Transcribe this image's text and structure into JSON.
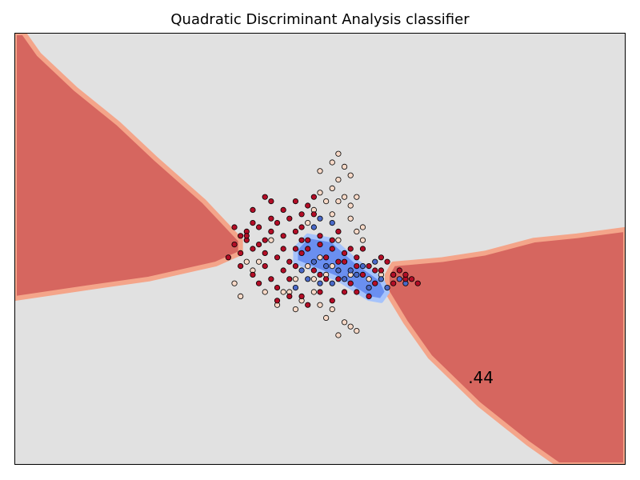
{
  "chart_data": {
    "type": "scatter",
    "title": "Quadratic Discriminant Analysis classifier",
    "xlabel": "",
    "ylabel": "",
    "ticks_visible": false,
    "grid": false,
    "legend": "none",
    "annotation": ".44",
    "xlim": [
      0,
      1
    ],
    "ylim": [
      0,
      1
    ],
    "background_color": "#e1e1e1",
    "decision_regions": [
      {
        "name": "upper-left",
        "color": "#d6665f",
        "outline_color": "#f4a58a",
        "polygon": [
          [
            0,
            1.0
          ],
          [
            0.015,
            1.0
          ],
          [
            0.04,
            0.95
          ],
          [
            0.1,
            0.87
          ],
          [
            0.17,
            0.79
          ],
          [
            0.23,
            0.71
          ],
          [
            0.31,
            0.61
          ],
          [
            0.37,
            0.52
          ],
          [
            0.37,
            0.49
          ],
          [
            0.33,
            0.465
          ],
          [
            0.22,
            0.43
          ],
          [
            0.12,
            0.41
          ],
          [
            0.0,
            0.385
          ]
        ]
      },
      {
        "name": "lower-right",
        "color": "#d6665f",
        "outline_color": "#f4a58a",
        "polygon": [
          [
            0.62,
            0.465
          ],
          [
            0.7,
            0.475
          ],
          [
            0.77,
            0.49
          ],
          [
            0.85,
            0.52
          ],
          [
            0.92,
            0.53
          ],
          [
            1.0,
            0.545
          ],
          [
            1.0,
            0.0
          ],
          [
            0.89,
            0.0
          ],
          [
            0.84,
            0.05
          ],
          [
            0.76,
            0.14
          ],
          [
            0.68,
            0.25
          ],
          [
            0.64,
            0.33
          ],
          [
            0.61,
            0.4
          ],
          [
            0.61,
            0.44
          ]
        ]
      },
      {
        "name": "center-blue",
        "color": "#6a8ff0",
        "outline_color": "#a6c3fb",
        "polygon": [
          [
            0.46,
            0.47
          ],
          [
            0.53,
            0.43
          ],
          [
            0.58,
            0.385
          ],
          [
            0.6,
            0.38
          ],
          [
            0.61,
            0.4
          ],
          [
            0.6,
            0.43
          ],
          [
            0.56,
            0.47
          ],
          [
            0.52,
            0.52
          ],
          [
            0.48,
            0.53
          ],
          [
            0.46,
            0.5
          ]
        ]
      }
    ],
    "series": [
      {
        "color": "#f8d9c7",
        "points": [
          [
            0.5,
            0.68
          ],
          [
            0.52,
            0.7
          ],
          [
            0.53,
            0.66
          ],
          [
            0.54,
            0.62
          ],
          [
            0.55,
            0.67
          ],
          [
            0.52,
            0.64
          ],
          [
            0.51,
            0.61
          ],
          [
            0.53,
            0.61
          ],
          [
            0.55,
            0.6
          ],
          [
            0.56,
            0.62
          ],
          [
            0.54,
            0.69
          ],
          [
            0.53,
            0.72
          ],
          [
            0.5,
            0.63
          ],
          [
            0.52,
            0.58
          ],
          [
            0.55,
            0.57
          ],
          [
            0.57,
            0.55
          ],
          [
            0.49,
            0.59
          ],
          [
            0.48,
            0.56
          ],
          [
            0.42,
            0.52
          ],
          [
            0.4,
            0.47
          ],
          [
            0.39,
            0.45
          ],
          [
            0.36,
            0.42
          ],
          [
            0.45,
            0.4
          ],
          [
            0.47,
            0.38
          ],
          [
            0.5,
            0.37
          ],
          [
            0.52,
            0.36
          ],
          [
            0.54,
            0.33
          ],
          [
            0.55,
            0.32
          ],
          [
            0.56,
            0.31
          ],
          [
            0.53,
            0.3
          ],
          [
            0.51,
            0.34
          ],
          [
            0.49,
            0.4
          ],
          [
            0.46,
            0.43
          ],
          [
            0.44,
            0.4
          ],
          [
            0.48,
            0.46
          ],
          [
            0.5,
            0.48
          ],
          [
            0.52,
            0.46
          ],
          [
            0.55,
            0.44
          ],
          [
            0.58,
            0.43
          ],
          [
            0.6,
            0.44
          ],
          [
            0.57,
            0.52
          ],
          [
            0.56,
            0.54
          ],
          [
            0.53,
            0.52
          ],
          [
            0.51,
            0.44
          ],
          [
            0.49,
            0.43
          ],
          [
            0.43,
            0.37
          ],
          [
            0.41,
            0.4
          ],
          [
            0.37,
            0.39
          ],
          [
            0.38,
            0.47
          ],
          [
            0.46,
            0.36
          ]
        ]
      },
      {
        "color": "#4a69c8",
        "points": [
          [
            0.47,
            0.45
          ],
          [
            0.48,
            0.43
          ],
          [
            0.5,
            0.42
          ],
          [
            0.52,
            0.42
          ],
          [
            0.54,
            0.43
          ],
          [
            0.56,
            0.44
          ],
          [
            0.58,
            0.41
          ],
          [
            0.6,
            0.43
          ],
          [
            0.62,
            0.44
          ],
          [
            0.63,
            0.43
          ],
          [
            0.59,
            0.47
          ],
          [
            0.57,
            0.46
          ],
          [
            0.55,
            0.45
          ],
          [
            0.53,
            0.45
          ],
          [
            0.51,
            0.46
          ],
          [
            0.49,
            0.47
          ],
          [
            0.5,
            0.57
          ],
          [
            0.52,
            0.56
          ],
          [
            0.49,
            0.55
          ],
          [
            0.46,
            0.41
          ],
          [
            0.61,
            0.41
          ],
          [
            0.64,
            0.42
          ]
        ]
      },
      {
        "color": "#b30d26",
        "points": [
          [
            0.39,
            0.59
          ],
          [
            0.42,
            0.57
          ],
          [
            0.44,
            0.59
          ],
          [
            0.47,
            0.58
          ],
          [
            0.49,
            0.58
          ],
          [
            0.46,
            0.61
          ],
          [
            0.43,
            0.56
          ],
          [
            0.4,
            0.55
          ],
          [
            0.38,
            0.54
          ],
          [
            0.37,
            0.53
          ],
          [
            0.36,
            0.51
          ],
          [
            0.41,
            0.52
          ],
          [
            0.44,
            0.53
          ],
          [
            0.46,
            0.54
          ],
          [
            0.48,
            0.52
          ],
          [
            0.5,
            0.51
          ],
          [
            0.52,
            0.5
          ],
          [
            0.54,
            0.49
          ],
          [
            0.56,
            0.48
          ],
          [
            0.58,
            0.46
          ],
          [
            0.6,
            0.45
          ],
          [
            0.62,
            0.44
          ],
          [
            0.64,
            0.43
          ],
          [
            0.66,
            0.42
          ],
          [
            0.43,
            0.48
          ],
          [
            0.41,
            0.46
          ],
          [
            0.39,
            0.44
          ],
          [
            0.42,
            0.43
          ],
          [
            0.45,
            0.47
          ],
          [
            0.47,
            0.49
          ],
          [
            0.49,
            0.45
          ],
          [
            0.51,
            0.48
          ],
          [
            0.53,
            0.47
          ],
          [
            0.55,
            0.42
          ],
          [
            0.57,
            0.44
          ],
          [
            0.59,
            0.45
          ],
          [
            0.47,
            0.39
          ],
          [
            0.5,
            0.4
          ],
          [
            0.52,
            0.38
          ],
          [
            0.44,
            0.45
          ],
          [
            0.46,
            0.5
          ],
          [
            0.41,
            0.49
          ],
          [
            0.39,
            0.5
          ],
          [
            0.4,
            0.42
          ],
          [
            0.43,
            0.41
          ],
          [
            0.45,
            0.43
          ],
          [
            0.48,
            0.5
          ],
          [
            0.5,
            0.53
          ],
          [
            0.53,
            0.54
          ],
          [
            0.55,
            0.5
          ],
          [
            0.57,
            0.5
          ],
          [
            0.38,
            0.52
          ],
          [
            0.37,
            0.49
          ],
          [
            0.35,
            0.48
          ],
          [
            0.45,
            0.57
          ],
          [
            0.47,
            0.55
          ],
          [
            0.42,
            0.61
          ],
          [
            0.41,
            0.62
          ],
          [
            0.49,
            0.62
          ],
          [
            0.48,
            0.6
          ],
          [
            0.38,
            0.53
          ],
          [
            0.61,
            0.47
          ],
          [
            0.59,
            0.42
          ],
          [
            0.56,
            0.4
          ],
          [
            0.54,
            0.4
          ],
          [
            0.51,
            0.43
          ],
          [
            0.58,
            0.39
          ],
          [
            0.62,
            0.42
          ],
          [
            0.64,
            0.44
          ],
          [
            0.6,
            0.48
          ],
          [
            0.44,
            0.5
          ],
          [
            0.42,
            0.54
          ],
          [
            0.4,
            0.51
          ],
          [
            0.37,
            0.46
          ],
          [
            0.45,
            0.39
          ],
          [
            0.48,
            0.37
          ],
          [
            0.43,
            0.38
          ],
          [
            0.36,
            0.55
          ],
          [
            0.39,
            0.56
          ],
          [
            0.52,
            0.52
          ],
          [
            0.54,
            0.47
          ],
          [
            0.56,
            0.46
          ],
          [
            0.53,
            0.43
          ],
          [
            0.5,
            0.44
          ],
          [
            0.46,
            0.46
          ],
          [
            0.47,
            0.52
          ],
          [
            0.63,
            0.45
          ],
          [
            0.65,
            0.43
          ]
        ]
      }
    ]
  }
}
